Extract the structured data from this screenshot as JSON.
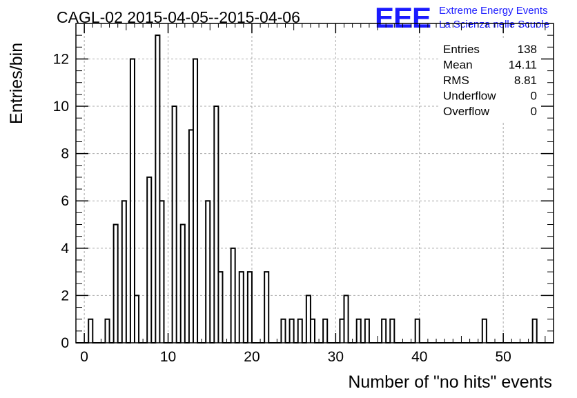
{
  "title": "CAGL-02 2015-04-05--2015-04-06",
  "logo": {
    "letters": "EEE",
    "line1": "Extreme Energy Events",
    "line2": "La Scienza nelle Scuole",
    "color": "#1a1aff"
  },
  "stats": [
    {
      "label": "Entries",
      "value": "138"
    },
    {
      "label": "Mean",
      "value": "14.11"
    },
    {
      "label": "RMS",
      "value": "8.81"
    },
    {
      "label": "Underflow",
      "value": "0"
    },
    {
      "label": "Overflow",
      "value": "0"
    }
  ],
  "chart_data": {
    "type": "bar",
    "style": "step-histogram",
    "xlabel": "Number of \"no hits\" events",
    "ylabel": "Entries/bin",
    "xlim": [
      -1,
      56
    ],
    "ylim": [
      0,
      13.5
    ],
    "bin_width": 0.5,
    "xticks": [
      0,
      10,
      20,
      30,
      40,
      50
    ],
    "yticks": [
      0,
      2,
      4,
      6,
      8,
      10,
      12
    ],
    "grid": true,
    "bins": [
      {
        "x": 0.5,
        "y": 1
      },
      {
        "x": 2.5,
        "y": 1
      },
      {
        "x": 3.5,
        "y": 5
      },
      {
        "x": 4.5,
        "y": 6
      },
      {
        "x": 5.5,
        "y": 12
      },
      {
        "x": 6.0,
        "y": 2
      },
      {
        "x": 7.5,
        "y": 7
      },
      {
        "x": 8.5,
        "y": 13
      },
      {
        "x": 9.0,
        "y": 6
      },
      {
        "x": 10.5,
        "y": 10
      },
      {
        "x": 11.5,
        "y": 5
      },
      {
        "x": 12.5,
        "y": 9
      },
      {
        "x": 13.0,
        "y": 12
      },
      {
        "x": 14.5,
        "y": 6
      },
      {
        "x": 15.5,
        "y": 10
      },
      {
        "x": 16.0,
        "y": 3
      },
      {
        "x": 17.5,
        "y": 4
      },
      {
        "x": 18.5,
        "y": 3
      },
      {
        "x": 19.5,
        "y": 3
      },
      {
        "x": 21.5,
        "y": 3
      },
      {
        "x": 23.5,
        "y": 1
      },
      {
        "x": 24.5,
        "y": 1
      },
      {
        "x": 25.5,
        "y": 1
      },
      {
        "x": 26.5,
        "y": 2
      },
      {
        "x": 27.0,
        "y": 1
      },
      {
        "x": 28.5,
        "y": 1
      },
      {
        "x": 30.5,
        "y": 1
      },
      {
        "x": 31.0,
        "y": 2
      },
      {
        "x": 32.5,
        "y": 1
      },
      {
        "x": 33.5,
        "y": 1
      },
      {
        "x": 35.5,
        "y": 1
      },
      {
        "x": 36.5,
        "y": 1
      },
      {
        "x": 39.5,
        "y": 1
      },
      {
        "x": 47.5,
        "y": 1
      },
      {
        "x": 53.5,
        "y": 1
      }
    ]
  }
}
